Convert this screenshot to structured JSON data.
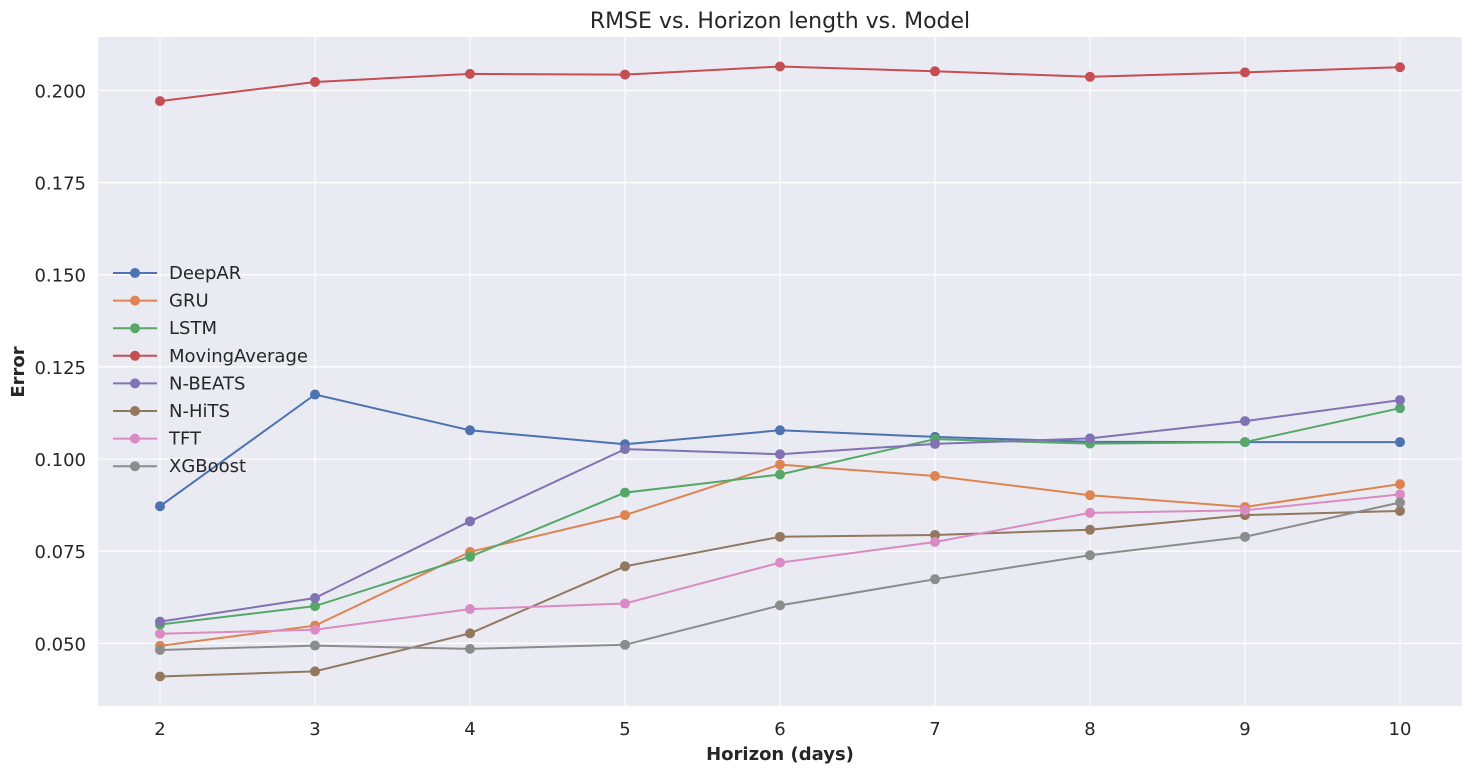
{
  "chart_data": {
    "type": "line",
    "title": "RMSE vs. Horizon length vs. Model",
    "xlabel": "Horizon (days)",
    "ylabel": "Error",
    "x": [
      2,
      3,
      4,
      5,
      6,
      7,
      8,
      9,
      10
    ],
    "xlim": [
      1.6,
      10.4
    ],
    "ylim": [
      0.033,
      0.2145
    ],
    "yticks": [
      0.05,
      0.075,
      0.1,
      0.125,
      0.15,
      0.175,
      0.2
    ],
    "ytick_labels": [
      "0.050",
      "0.075",
      "0.100",
      "0.125",
      "0.150",
      "0.175",
      "0.200"
    ],
    "xticks": [
      2,
      3,
      4,
      5,
      6,
      7,
      8,
      9,
      10
    ],
    "xtick_labels": [
      "2",
      "3",
      "4",
      "5",
      "6",
      "7",
      "8",
      "9",
      "10"
    ],
    "grid": true,
    "background": "#eaeaf2",
    "legend_position": "center-left",
    "series": [
      {
        "name": "DeepAR",
        "color": "#4c72b0",
        "values": [
          0.0872,
          0.1175,
          0.1078,
          0.104,
          0.1078,
          0.106,
          0.1047,
          0.1046,
          0.1046
        ]
      },
      {
        "name": "GRU",
        "color": "#dd8452",
        "values": [
          0.0493,
          0.0548,
          0.0748,
          0.0848,
          0.0985,
          0.0954,
          0.0902,
          0.087,
          0.0932
        ]
      },
      {
        "name": "LSTM",
        "color": "#55a868",
        "values": [
          0.0551,
          0.0601,
          0.0735,
          0.0909,
          0.0958,
          0.1054,
          0.1042,
          0.1046,
          0.1138
        ]
      },
      {
        "name": "MovingAverage",
        "color": "#c44e52",
        "values": [
          0.1971,
          0.2023,
          0.2045,
          0.2043,
          0.2065,
          0.2052,
          0.2037,
          0.2049,
          0.2063
        ]
      },
      {
        "name": "N-BEATS",
        "color": "#8172b3",
        "values": [
          0.0559,
          0.0623,
          0.0831,
          0.1027,
          0.1013,
          0.1041,
          0.1056,
          0.1103,
          0.116
        ]
      },
      {
        "name": "N-HiTS",
        "color": "#937860",
        "values": [
          0.041,
          0.0424,
          0.0527,
          0.0709,
          0.0789,
          0.0794,
          0.0808,
          0.0848,
          0.0859
        ]
      },
      {
        "name": "TFT",
        "color": "#da8bc3",
        "values": [
          0.0526,
          0.0537,
          0.0593,
          0.0608,
          0.0719,
          0.0775,
          0.0854,
          0.0861,
          0.0904
        ]
      },
      {
        "name": "XGBoost",
        "color": "#8c8c8c",
        "values": [
          0.0482,
          0.0494,
          0.0485,
          0.0496,
          0.0603,
          0.0674,
          0.0739,
          0.0789,
          0.0882
        ]
      }
    ]
  }
}
